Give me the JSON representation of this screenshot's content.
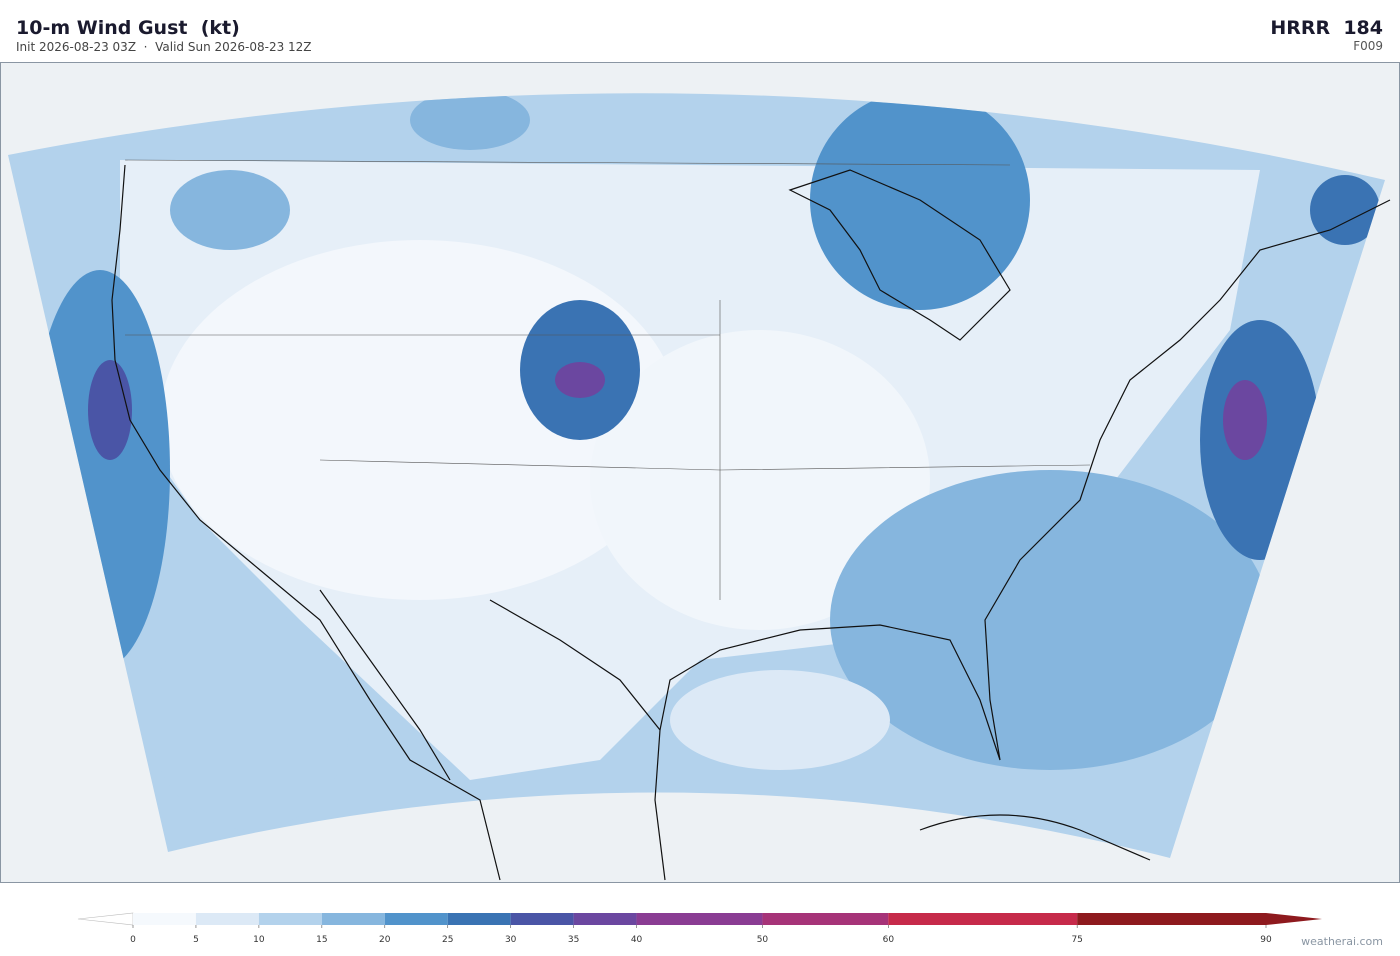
{
  "header": {
    "title": "10-m Wind Gust  (kt)",
    "subtitle": "Init 2026-08-23 03Z  ·  Valid Sun 2026-08-23 12Z",
    "model": "HRRR  184",
    "forecast_hour": "F009"
  },
  "colorbar": {
    "lim": [
      0,
      90
    ],
    "ticks": [
      0,
      5,
      10,
      15,
      20,
      25,
      30,
      35,
      40,
      50,
      60,
      75,
      90
    ],
    "colors": [
      "#f5f9fd",
      "#dce9f6",
      "#b3d2ec",
      "#86b6de",
      "#5193cb",
      "#3a73b3",
      "#4a55a6",
      "#6b47a0",
      "#8a3c93",
      "#a63378",
      "#c62a4a",
      "#8e1a1e"
    ]
  },
  "credit": "weatherai.com"
}
